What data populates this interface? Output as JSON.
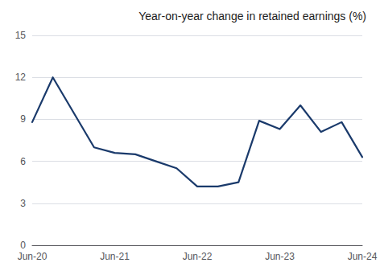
{
  "chart_data": {
    "type": "line",
    "title": "Year-on-year change in retained earnings (%)",
    "categories": [
      "Jun-20",
      null,
      null,
      null,
      "Jun-21",
      null,
      null,
      null,
      "Jun-22",
      null,
      null,
      null,
      "Jun-23",
      null,
      null,
      null,
      "Jun-24"
    ],
    "values": [
      8.8,
      12.0,
      9.5,
      7.0,
      6.6,
      6.5,
      6.0,
      5.5,
      4.2,
      4.2,
      4.5,
      8.9,
      8.3,
      10.0,
      8.1,
      8.8,
      6.3
    ],
    "color": "#1a3a6b",
    "ylim": [
      0,
      15
    ],
    "yticks": [
      0,
      3,
      6,
      9,
      12,
      15
    ],
    "grid": true
  }
}
